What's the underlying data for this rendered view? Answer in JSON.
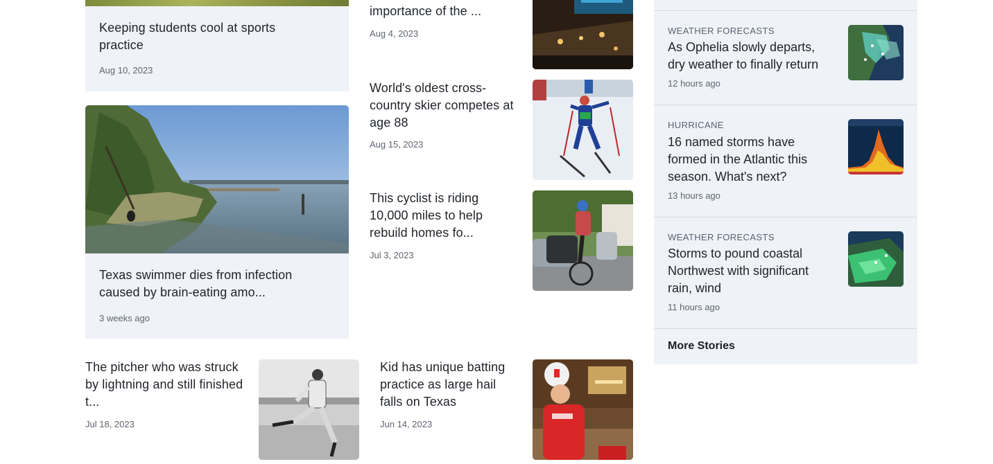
{
  "left_column": {
    "card_top": {
      "title": "Keeping students cool at sports practice",
      "date": "Aug 10, 2023"
    },
    "card_lake": {
      "title": "Texas swimmer dies from infection caused by brain-eating amo...",
      "date": "3 weeks ago"
    }
  },
  "middle_column": {
    "items": [
      {
        "title": "importance of the ...",
        "date": "Aug 4, 2023"
      },
      {
        "title": "World's oldest cross-country skier competes at age 88",
        "date": "Aug 15, 2023"
      },
      {
        "title": "This cyclist is riding 10,000 miles to help rebuild homes fo...",
        "date": "Jul 3, 2023"
      }
    ]
  },
  "bottom_row": {
    "items": [
      {
        "title": "The pitcher who was struck by lightning and still finished t...",
        "date": "Jul 18, 2023"
      },
      {
        "title": "Kid has unique batting practice as large hail falls on Texas",
        "date": "Jun 14, 2023"
      }
    ]
  },
  "sidebar": {
    "items": [
      {
        "category": "WEATHER FORECASTS",
        "title": "As Ophelia slowly departs, dry weather to finally return",
        "time": "12 hours ago",
        "thumb_icon": "weather-map-icon"
      },
      {
        "category": "HURRICANE",
        "title": "16 named storms have formed in the Atlantic this season. What's next?",
        "time": "13 hours ago",
        "thumb_icon": "hurricane-chart-icon"
      },
      {
        "category": "WEATHER FORECASTS",
        "title": "Storms to pound coastal Northwest with significant rain, wind",
        "time": "11 hours ago",
        "thumb_icon": "radar-map-icon"
      }
    ],
    "more_label": "More Stories"
  },
  "colors": {
    "card_bg": "#eff2f7",
    "text": "#1f2329",
    "muted": "#5e6670",
    "separator": "#d7dbe2"
  }
}
